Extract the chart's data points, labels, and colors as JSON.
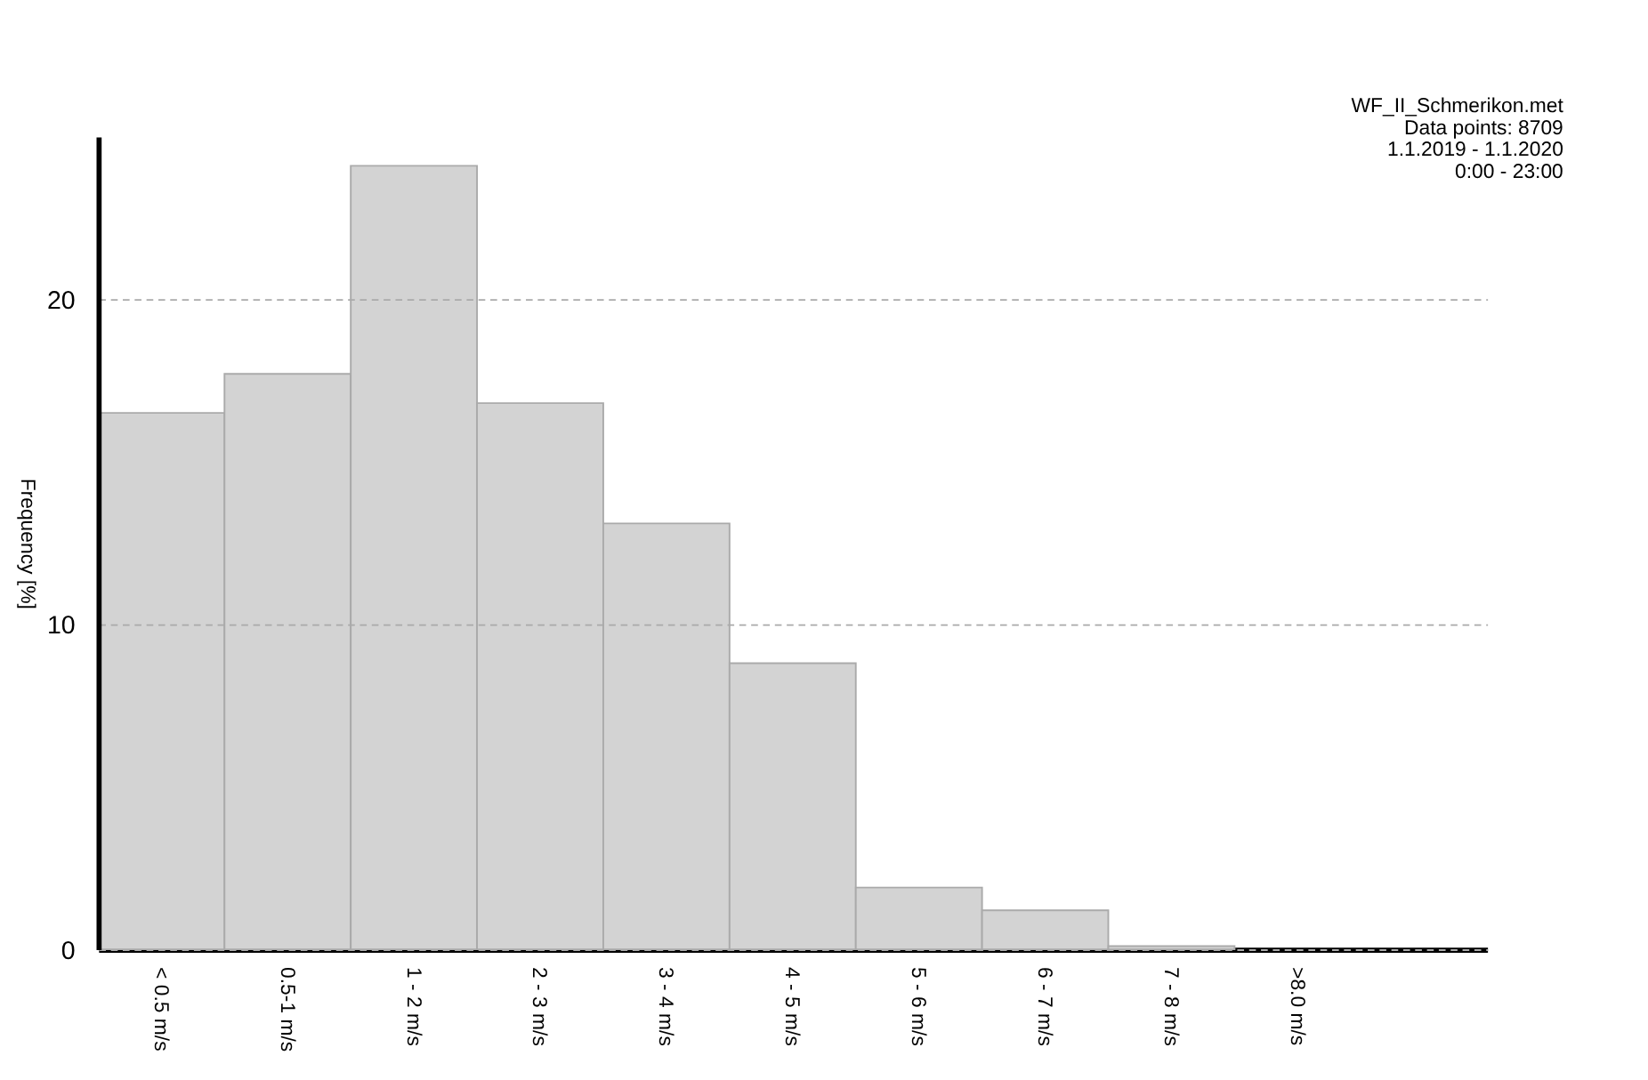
{
  "chart_data": {
    "type": "bar",
    "ylabel": "Frequency [%]",
    "categories": [
      "< 0.5 m/s",
      "0.5-1 m/s",
      "1 - 2 m/s",
      "2 - 3 m/s",
      "3 - 4 m/s",
      "4 - 5 m/s",
      "5 - 6 m/s",
      "6 - 7 m/s",
      "7 - 8 m/s",
      ">8.0 m/s"
    ],
    "values": [
      16.5,
      17.7,
      24.1,
      16.8,
      13.1,
      8.8,
      1.9,
      1.2,
      0.1,
      0
    ],
    "color": "#d3d3d3",
    "ylim": [
      0,
      25
    ],
    "yticks": [
      0,
      10,
      20
    ],
    "grid": "y",
    "annotations": [
      "WF_II_Schmerikon.met",
      "Data points: 8709",
      "1.1.2019 - 1.1.2020",
      "0:00 - 23:00"
    ]
  }
}
